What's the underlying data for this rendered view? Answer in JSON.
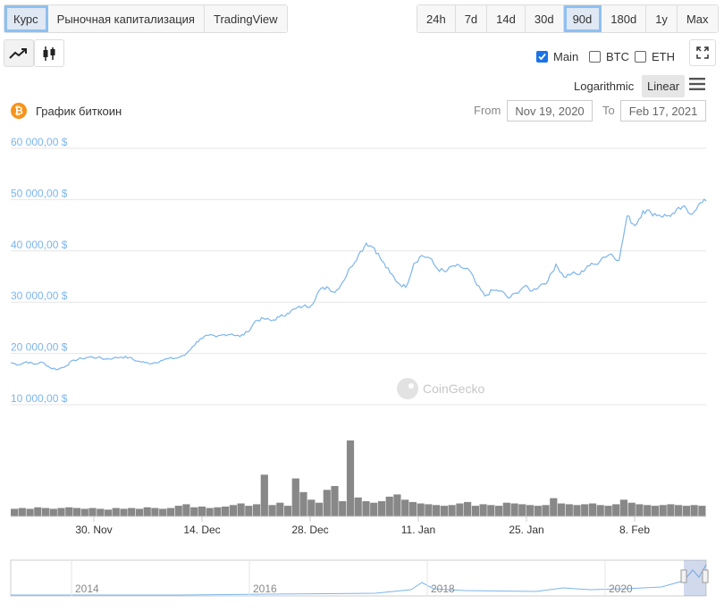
{
  "tabs": [
    {
      "label": "Курс",
      "active": true
    },
    {
      "label": "Рыночная капитализация",
      "active": false
    },
    {
      "label": "TradingView",
      "active": false
    }
  ],
  "ranges": [
    {
      "label": "24h",
      "active": false
    },
    {
      "label": "7d",
      "active": false
    },
    {
      "label": "14d",
      "active": false
    },
    {
      "label": "30d",
      "active": false
    },
    {
      "label": "90d",
      "active": true
    },
    {
      "label": "180d",
      "active": false
    },
    {
      "label": "1y",
      "active": false
    },
    {
      "label": "Max",
      "active": false
    }
  ],
  "compare": [
    {
      "label": "Main",
      "checked": true
    },
    {
      "label": "BTC",
      "checked": false
    },
    {
      "label": "ETH",
      "checked": false
    }
  ],
  "scale": {
    "log_label": "Logarithmic",
    "linear_label": "Linear",
    "active": "Linear"
  },
  "chart_title": "График биткоин",
  "date_range": {
    "from_label": "From",
    "from": "Nov 19, 2020",
    "to_label": "To",
    "to": "Feb 17, 2021"
  },
  "watermark": "CoinGecko",
  "colors": {
    "line": "#7cb5ec",
    "volume": "#888888",
    "accent": "#f7931a",
    "axis_label": "#7cb5ec"
  },
  "chart_data": {
    "type": "line",
    "title": "График биткоин",
    "ylim": [
      10000,
      60000
    ],
    "y_ticks": [
      "10 000,00 $",
      "20 000,00 $",
      "30 000,00 $",
      "40 000,00 $",
      "50 000,00 $",
      "60 000,00 $"
    ],
    "x_ticks": [
      "30. Nov",
      "14. Dec",
      "28. Dec",
      "11. Jan",
      "25. Jan",
      "8. Feb"
    ],
    "grid": true,
    "series": [
      {
        "values": [
          18200,
          17800,
          18400,
          17900,
          18300,
          17200,
          16900,
          17600,
          18700,
          19000,
          19300,
          19200,
          18900,
          19100,
          19300,
          19200,
          18500,
          18200,
          18100,
          18600,
          19000,
          19100,
          19600,
          21300,
          22900,
          23500,
          23200,
          23700,
          23800,
          23300,
          24200,
          26400,
          26800,
          26400,
          27100,
          27800,
          28700,
          29200,
          29300,
          32200,
          33000,
          31900,
          33900,
          36800,
          39200,
          41500,
          40600,
          38000,
          35700,
          33800,
          32900,
          37500,
          39100,
          38600,
          36500,
          35900,
          37100,
          36800,
          36300,
          33300,
          31200,
          32300,
          32200,
          30800,
          31800,
          33100,
          32200,
          33300,
          34200,
          37400,
          34900,
          35600,
          35400,
          37100,
          37400,
          38800,
          39400,
          38200,
          46800,
          44900,
          47800,
          47500,
          47000,
          46800,
          47300,
          48600,
          47200,
          48900,
          49700
        ]
      }
    ],
    "volume": [
      0.1,
      0.11,
      0.1,
      0.12,
      0.11,
      0.1,
      0.11,
      0.12,
      0.11,
      0.1,
      0.11,
      0.1,
      0.09,
      0.11,
      0.1,
      0.11,
      0.1,
      0.12,
      0.11,
      0.1,
      0.11,
      0.14,
      0.16,
      0.12,
      0.13,
      0.11,
      0.12,
      0.13,
      0.15,
      0.17,
      0.14,
      0.16,
      0.55,
      0.15,
      0.18,
      0.14,
      0.5,
      0.32,
      0.22,
      0.18,
      0.35,
      0.4,
      0.2,
      1.0,
      0.25,
      0.2,
      0.18,
      0.2,
      0.26,
      0.29,
      0.22,
      0.19,
      0.17,
      0.16,
      0.15,
      0.14,
      0.15,
      0.17,
      0.19,
      0.14,
      0.16,
      0.15,
      0.14,
      0.18,
      0.17,
      0.16,
      0.15,
      0.14,
      0.15,
      0.24,
      0.17,
      0.16,
      0.15,
      0.16,
      0.17,
      0.15,
      0.14,
      0.16,
      0.22,
      0.18,
      0.16,
      0.15,
      0.14,
      0.15,
      0.16,
      0.15,
      0.14,
      0.15,
      0.14
    ],
    "navigator_ticks": [
      "2014",
      "2016",
      "2018",
      "2020"
    ]
  }
}
